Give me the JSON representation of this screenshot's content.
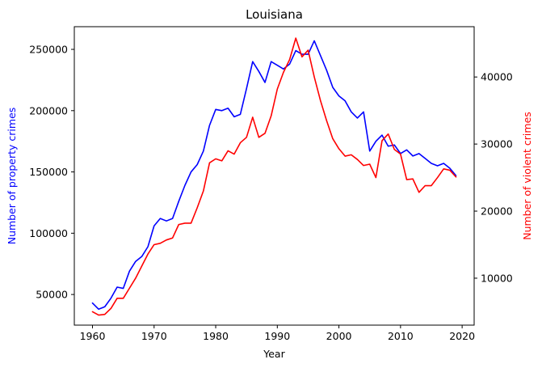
{
  "chart_data": {
    "type": "line",
    "title": "Louisiana",
    "xlabel": "Year",
    "x": [
      1960,
      1961,
      1962,
      1963,
      1964,
      1965,
      1966,
      1967,
      1968,
      1969,
      1970,
      1971,
      1972,
      1973,
      1974,
      1975,
      1976,
      1977,
      1978,
      1979,
      1980,
      1981,
      1982,
      1983,
      1984,
      1985,
      1986,
      1987,
      1988,
      1989,
      1990,
      1991,
      1992,
      1993,
      1994,
      1995,
      1996,
      1997,
      1998,
      1999,
      2000,
      2001,
      2002,
      2003,
      2004,
      2005,
      2006,
      2007,
      2008,
      2009,
      2010,
      2011,
      2012,
      2013,
      2014,
      2015,
      2016,
      2017,
      2018,
      2019
    ],
    "xlim": [
      1957.05,
      2021.95
    ],
    "xticks": [
      1960,
      1970,
      1980,
      1990,
      2000,
      2010,
      2020
    ],
    "grid": false,
    "axes": [
      {
        "side": "left",
        "ylabel": "Number of property crimes",
        "color": "#0000ff",
        "ylim": [
          25000,
          268500
        ],
        "yticks": [
          50000,
          100000,
          150000,
          200000,
          250000
        ]
      },
      {
        "side": "right",
        "ylabel": "Number of violent crimes",
        "color": "#ff0000",
        "ylim": [
          3000,
          47500
        ],
        "yticks": [
          10000,
          20000,
          30000,
          40000
        ]
      }
    ],
    "series": [
      {
        "axis": "left",
        "color": "#0000ff",
        "values": [
          43000,
          38000,
          40000,
          47000,
          56000,
          55000,
          69000,
          77000,
          81000,
          89000,
          106000,
          112000,
          110000,
          112000,
          126000,
          139000,
          150000,
          156000,
          167000,
          188000,
          201000,
          200000,
          202000,
          195000,
          197000,
          218000,
          240000,
          232000,
          223000,
          240000,
          237000,
          234000,
          238000,
          249000,
          246000,
          246000,
          257000,
          245000,
          233000,
          219000,
          212000,
          208000,
          199000,
          194000,
          199000,
          167000,
          175000,
          180000,
          171000,
          172000,
          165000,
          168000,
          163000,
          165000,
          161000,
          157000,
          155000,
          157000,
          153000,
          147000
        ]
      },
      {
        "axis": "right",
        "color": "#ff0000",
        "values": [
          5000,
          4500,
          4600,
          5500,
          7000,
          7000,
          8500,
          10000,
          11800,
          13600,
          15000,
          15200,
          15700,
          16000,
          18000,
          18200,
          18200,
          20500,
          23000,
          27200,
          27800,
          27500,
          29000,
          28500,
          30200,
          31000,
          34000,
          31000,
          31600,
          34200,
          38200,
          40700,
          42600,
          45800,
          43000,
          44000,
          40000,
          36500,
          33500,
          30800,
          29300,
          28200,
          28400,
          27700,
          26800,
          27000,
          25000,
          30500,
          31500,
          29200,
          28500,
          24700,
          24800,
          22800,
          23800,
          23800,
          25000,
          26300,
          26100,
          25100
        ]
      }
    ]
  }
}
